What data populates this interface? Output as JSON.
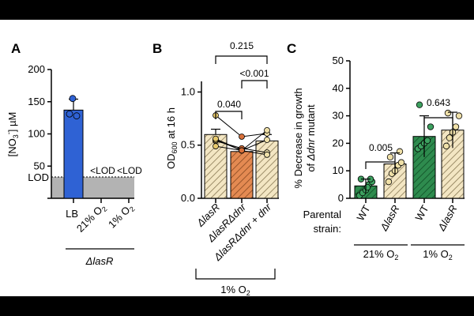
{
  "chart_data": [
    {
      "panel": "A",
      "type": "bar",
      "ylabel_base": "[NO",
      "ylabel_sub": "3",
      "ylabel_sup": "-",
      "ylabel_end": "] µM",
      "ylim": [
        0,
        200
      ],
      "yticks": [
        "0",
        "50",
        "100",
        "150",
        "200"
      ],
      "lod_label": "LOD",
      "lod_value": 35,
      "categories": [
        {
          "label": "LB",
          "sub": ""
        },
        {
          "label": "21% O",
          "sub": "2"
        },
        {
          "label": "1% O",
          "sub": "2"
        }
      ],
      "group_label": "ΔlasR",
      "bars": [
        {
          "category": "LB",
          "mean": 137,
          "sd": 17,
          "points": [
            155,
            131,
            128
          ],
          "color": "#2f62d4"
        }
      ],
      "below_lod": [
        {
          "category": "21% O2",
          "text": "<LOD"
        },
        {
          "category": "1% O2",
          "text": "<LOD"
        }
      ]
    },
    {
      "panel": "B",
      "type": "bar",
      "ylabel_base": "OD",
      "ylabel_sub": "600",
      "ylabel_end": " at 16 h",
      "ylim": [
        0,
        1.1
      ],
      "yticks": [
        "0.0",
        "0.5",
        "1.0"
      ],
      "categories": [
        "ΔlasR",
        "ΔlasRΔdnr",
        "ΔlasRΔdnr + dnr"
      ],
      "means": [
        0.6,
        0.44,
        0.54
      ],
      "sd": [
        0.05,
        0.03,
        0.06
      ],
      "replicates": [
        [
          0.78,
          0.58,
          0.61
        ],
        [
          0.54,
          0.47,
          0.43
        ],
        [
          0.49,
          0.45,
          0.41
        ],
        [
          0.55,
          0.45,
          0.55
        ],
        [
          0.56,
          0.45,
          0.64
        ]
      ],
      "colors": {
        "lasR": "#e7c96c",
        "dnr": "#d8703a",
        "comp": "#efe0a8"
      },
      "comparisons": [
        {
          "pair": [
            "ΔlasR",
            "ΔlasRΔdnr"
          ],
          "p": "0.040"
        },
        {
          "pair": [
            "ΔlasRΔdnr",
            "ΔlasRΔdnr + dnr"
          ],
          "p": "<0.001"
        },
        {
          "pair": [
            "ΔlasR",
            "ΔlasRΔdnr + dnr"
          ],
          "p": "0.215"
        }
      ],
      "condition_base": "1% O",
      "condition_sub": "2"
    },
    {
      "panel": "C",
      "type": "bar",
      "ylabel_line1": "% Decrease in growth",
      "ylabel_line2_pre": "of ",
      "ylabel_line2_italic": "Δdnr",
      "ylabel_line2_post": " mutant",
      "ylim": [
        0,
        50
      ],
      "yticks": [
        "0",
        "10",
        "20",
        "30",
        "40",
        "50"
      ],
      "parental_label_1": "Parental",
      "parental_label_2": "strain:",
      "categories": [
        "WT",
        "ΔlasR",
        "WT",
        "ΔlasR"
      ],
      "conditions": [
        {
          "base": "21% O",
          "sub": "2"
        },
        {
          "base": "1% O",
          "sub": "2"
        }
      ],
      "means": [
        4.5,
        12.5,
        22.5,
        24.8
      ],
      "sd": [
        2.5,
        4.0,
        7.5,
        6.5
      ],
      "points": [
        [
          1,
          2,
          3,
          5,
          6,
          7,
          7,
          4
        ],
        [
          6,
          9,
          10,
          12,
          13,
          15,
          17
        ],
        [
          18,
          19,
          20,
          21,
          26,
          34
        ],
        [
          19,
          22,
          24,
          26,
          30,
          31
        ]
      ],
      "colors": {
        "wt21": "#2e8b4e",
        "wt1": "#1e7a3c",
        "wtpt": "#3da160",
        "lasRpt": "#efe0a8"
      },
      "comparisons": [
        {
          "pair": [
            "WT 21% O2",
            "ΔlasR 21% O2"
          ],
          "p": "0.005"
        },
        {
          "pair": [
            "WT 1% O2",
            "ΔlasR 1% O2"
          ],
          "p": "0.643"
        }
      ]
    }
  ]
}
